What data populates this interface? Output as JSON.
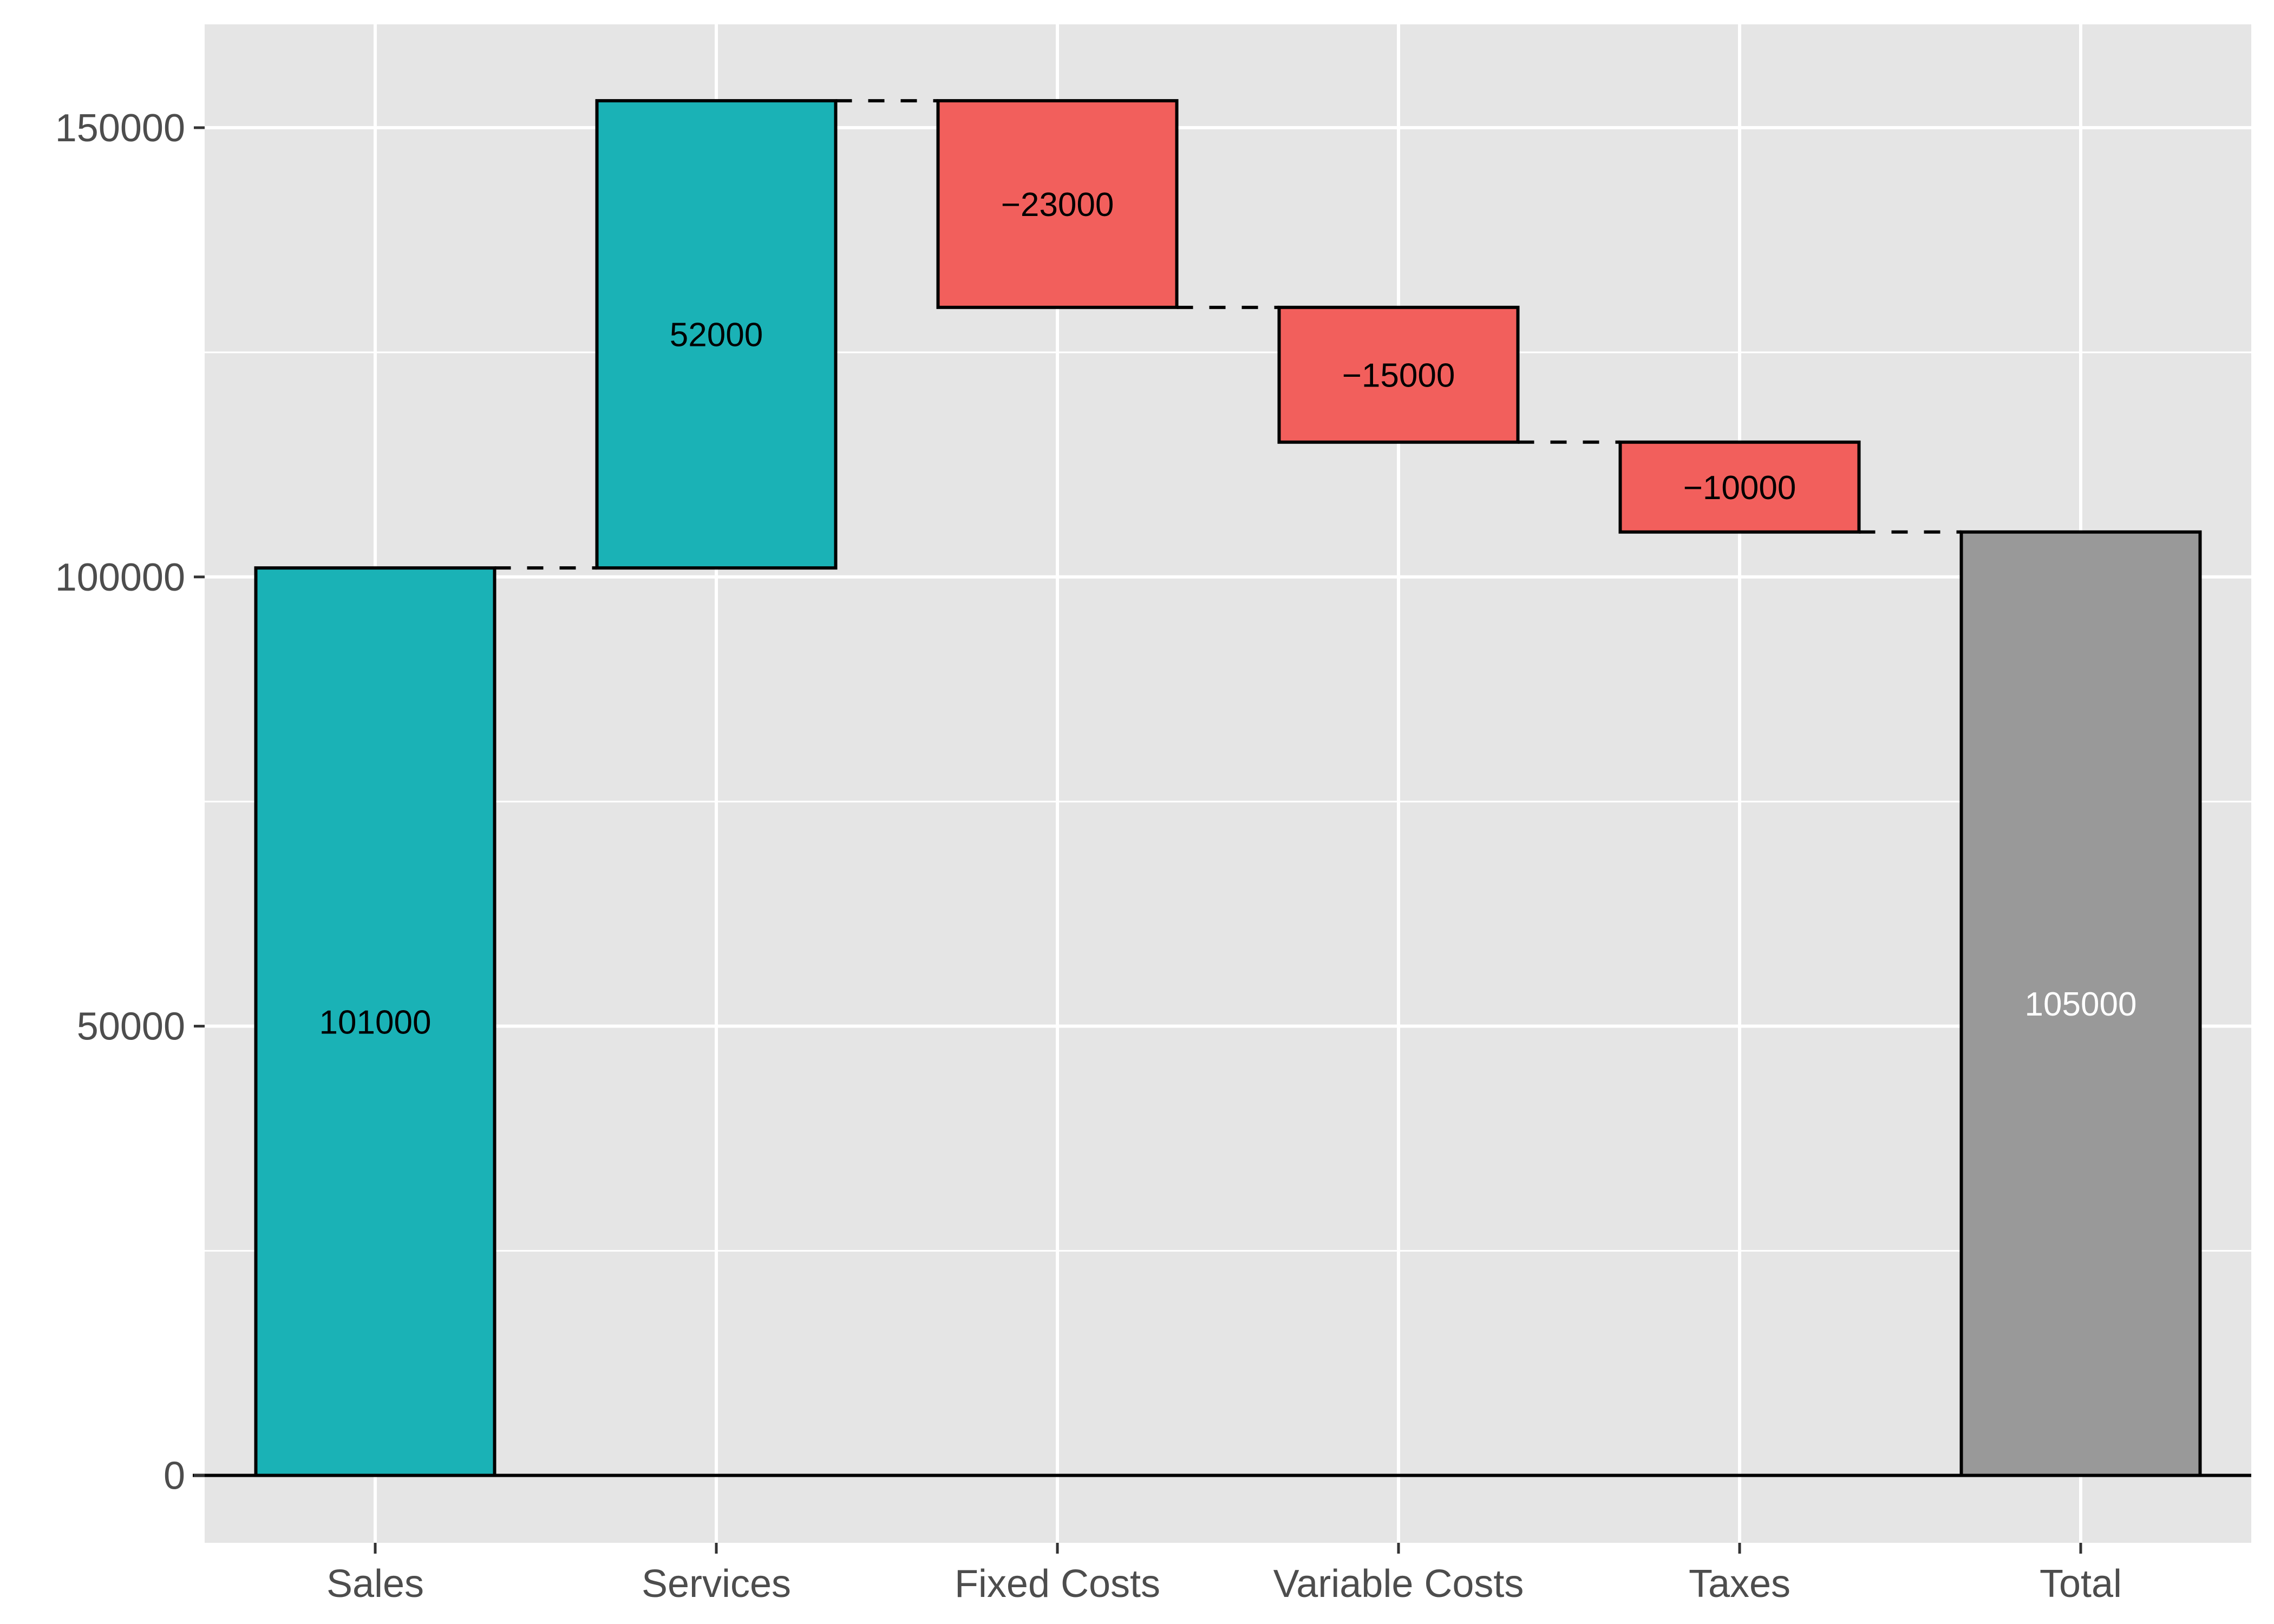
{
  "chart_data": {
    "type": "bar",
    "subtype": "waterfall",
    "title": "",
    "xlabel": "",
    "ylabel": "",
    "categories": [
      "Sales",
      "Services",
      "Fixed Costs",
      "Variable Costs",
      "Taxes",
      "Total"
    ],
    "values": [
      101000,
      52000,
      -23000,
      -15000,
      -10000,
      105000
    ],
    "value_labels": [
      "101000",
      "52000",
      "−23000",
      "−15000",
      "−10000",
      "105000"
    ],
    "bar_kind": [
      "increase",
      "increase",
      "decrease",
      "decrease",
      "decrease",
      "total"
    ],
    "y_ticks": [
      0,
      50000,
      100000,
      150000
    ],
    "y_tick_labels": [
      "0",
      "50000",
      "100000",
      "150000"
    ],
    "ylim": [
      -7500,
      161500
    ],
    "grid": true,
    "legend": "none",
    "colors": {
      "increase": "#1AB2B6",
      "decrease": "#F25F5C",
      "total": "#999999",
      "panel": "#E5E5E5",
      "grid": "#FFFFFF",
      "outline": "#000000",
      "label_dark": "#000000",
      "label_light": "#FFFFFF"
    }
  }
}
